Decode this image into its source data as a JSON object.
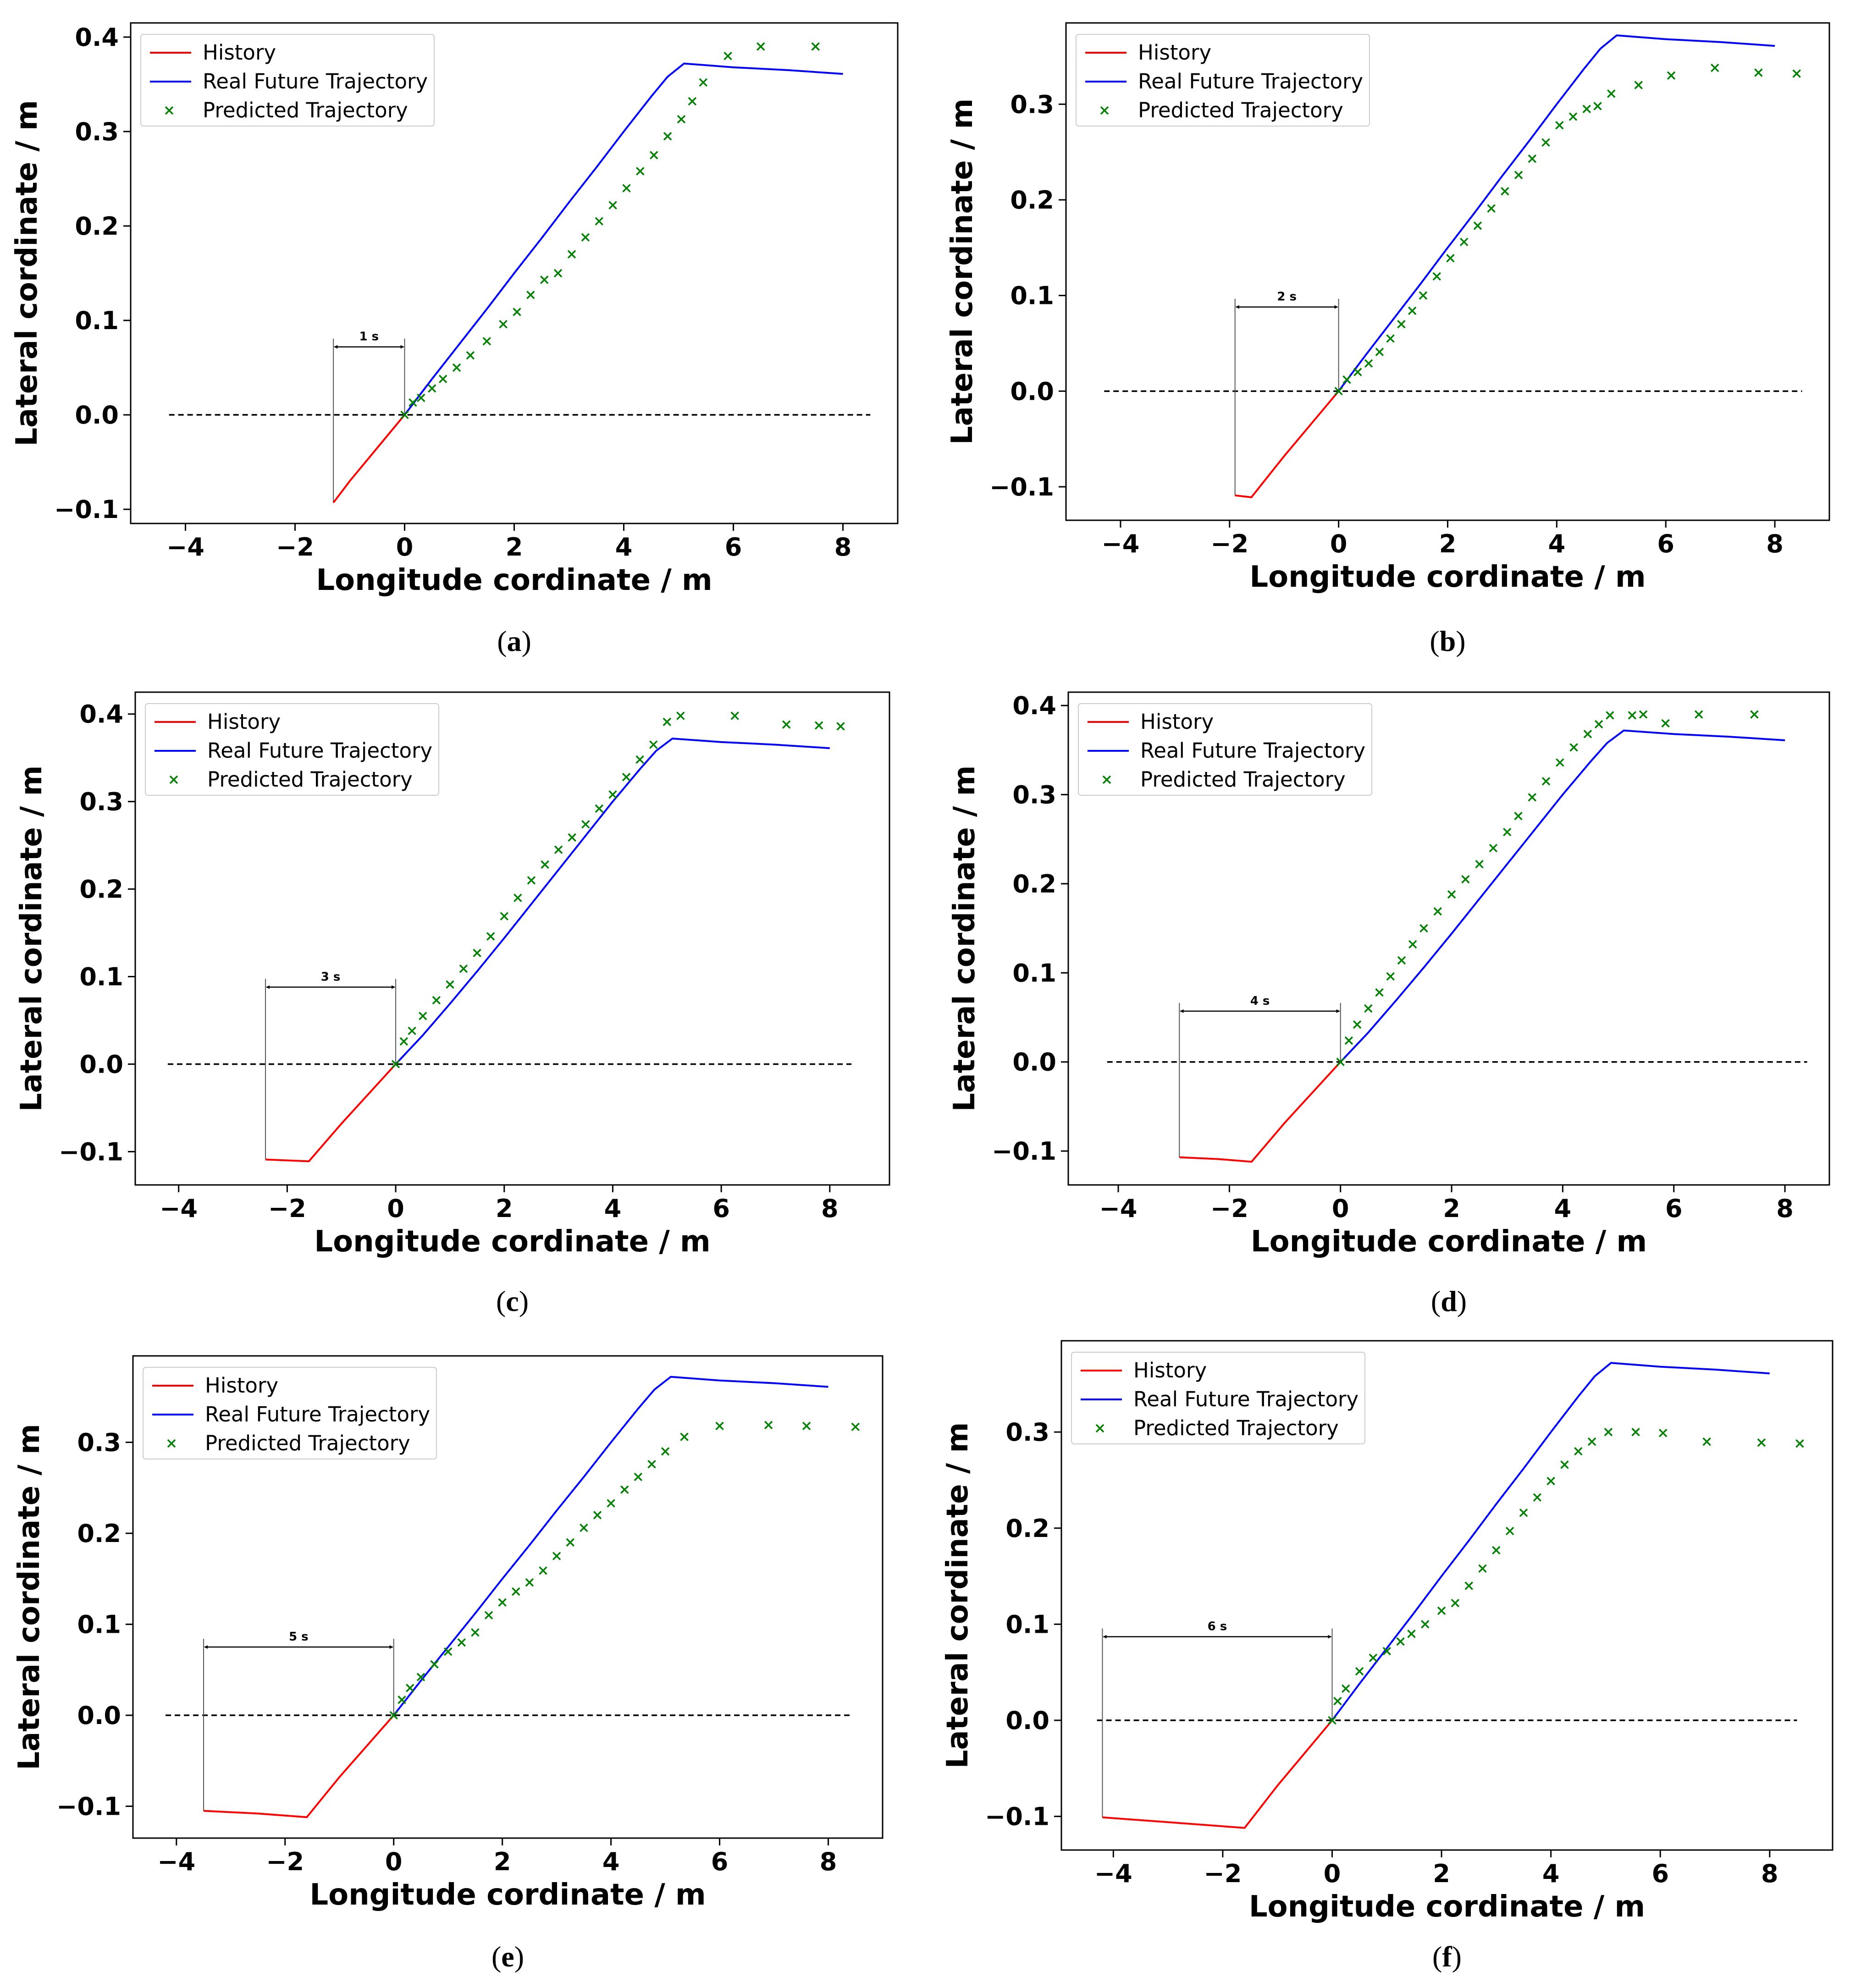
{
  "figure": {
    "colors": {
      "history": "#ff0000",
      "real": "#0000ff",
      "predicted": "#008000",
      "zero_line": "#000000"
    },
    "legend": [
      "History",
      "Real Future Trajectory",
      "Predicted Trajectory"
    ]
  },
  "chart_data": [
    {
      "type": "line",
      "caption": "a",
      "xlabel": "Longitude cordinate / m",
      "ylabel": "Lateral cordinate / m",
      "xlim": [
        -5.0,
        9.0
      ],
      "ylim": [
        -0.115,
        0.415
      ],
      "xticks": [
        -4,
        -2,
        0,
        2,
        4,
        6,
        8
      ],
      "xtick_labels": [
        "−4",
        "−2",
        "0",
        "2",
        "4",
        "6",
        "8"
      ],
      "yticks": [
        -0.1,
        0.0,
        0.1,
        0.2,
        0.3,
        0.4
      ],
      "ytick_labels": [
        "−0.1",
        "0.0",
        "0.1",
        "0.2",
        "0.3",
        "0.4"
      ],
      "zero_line_x": [
        -4.3,
        8.5
      ],
      "interval_label": "1 s",
      "interval_x": [
        -1.3,
        0
      ],
      "interval_y": 0.072,
      "series": [
        {
          "name": "History",
          "x": [
            -1.3,
            -1.0,
            -0.5,
            0.0
          ],
          "y": [
            -0.093,
            -0.07,
            -0.035,
            0.0
          ]
        },
        {
          "name": "Real Future Trajectory",
          "x": [
            0,
            0.5,
            1.0,
            1.5,
            2.0,
            2.5,
            3.0,
            3.5,
            4.0,
            4.5,
            4.8,
            5.1,
            6.0,
            7.0,
            8.0
          ],
          "y": [
            0,
            0.038,
            0.075,
            0.112,
            0.15,
            0.187,
            0.225,
            0.262,
            0.3,
            0.337,
            0.358,
            0.372,
            0.368,
            0.365,
            0.361
          ]
        },
        {
          "name": "Predicted Trajectory",
          "x": [
            0.0,
            0.15,
            0.3,
            0.5,
            0.7,
            0.95,
            1.2,
            1.5,
            1.8,
            2.05,
            2.3,
            2.55,
            2.8,
            3.05,
            3.3,
            3.55,
            3.8,
            4.05,
            4.3,
            4.55,
            4.8,
            5.05,
            5.25,
            5.45,
            5.9,
            6.5,
            7.5
          ],
          "y": [
            0.0,
            0.013,
            0.018,
            0.028,
            0.038,
            0.05,
            0.063,
            0.078,
            0.096,
            0.109,
            0.127,
            0.143,
            0.15,
            0.17,
            0.188,
            0.205,
            0.222,
            0.24,
            0.258,
            0.275,
            0.295,
            0.313,
            0.332,
            0.352,
            0.38,
            0.39,
            0.39
          ]
        }
      ]
    },
    {
      "type": "line",
      "caption": "b",
      "xlabel": "Longitude cordinate / m",
      "ylabel": "Lateral cordinate / m",
      "xlim": [
        -5.0,
        9.0
      ],
      "ylim": [
        -0.135,
        0.385
      ],
      "xticks": [
        -4,
        -2,
        0,
        2,
        4,
        6,
        8
      ],
      "xtick_labels": [
        "−4",
        "−2",
        "0",
        "2",
        "4",
        "6",
        "8"
      ],
      "yticks": [
        -0.1,
        0.0,
        0.1,
        0.2,
        0.3
      ],
      "ytick_labels": [
        "−0.1",
        "0.0",
        "0.1",
        "0.2",
        "0.3"
      ],
      "zero_line_x": [
        -4.3,
        8.5
      ],
      "interval_label": "2 s",
      "interval_x": [
        -1.9,
        0
      ],
      "interval_y": 0.088,
      "series": [
        {
          "name": "History",
          "x": [
            -1.9,
            -1.6,
            -1.0,
            -0.5,
            0.0
          ],
          "y": [
            -0.109,
            -0.111,
            -0.068,
            -0.034,
            0.0
          ]
        },
        {
          "name": "Real Future Trajectory",
          "x": [
            0,
            0.5,
            1.0,
            1.5,
            2.0,
            2.5,
            3.0,
            3.5,
            4.0,
            4.5,
            4.8,
            5.1,
            6.0,
            7.0,
            8.0
          ],
          "y": [
            0,
            0.038,
            0.075,
            0.112,
            0.15,
            0.187,
            0.225,
            0.262,
            0.3,
            0.337,
            0.358,
            0.372,
            0.368,
            0.365,
            0.361
          ]
        },
        {
          "name": "Predicted Trajectory",
          "x": [
            0.0,
            0.15,
            0.35,
            0.55,
            0.75,
            0.95,
            1.15,
            1.35,
            1.55,
            1.8,
            2.05,
            2.3,
            2.55,
            2.8,
            3.05,
            3.3,
            3.55,
            3.8,
            4.05,
            4.3,
            4.55,
            4.75,
            5.0,
            5.5,
            6.1,
            6.9,
            7.7,
            8.4
          ],
          "y": [
            0.0,
            0.012,
            0.02,
            0.029,
            0.041,
            0.055,
            0.07,
            0.084,
            0.1,
            0.12,
            0.139,
            0.156,
            0.173,
            0.191,
            0.209,
            0.226,
            0.243,
            0.26,
            0.278,
            0.287,
            0.295,
            0.298,
            0.311,
            0.32,
            0.33,
            0.338,
            0.333,
            0.332
          ]
        }
      ]
    },
    {
      "type": "line",
      "caption": "c",
      "xlabel": "Longitude cordinate / m",
      "ylabel": "Lateral cordinate / m",
      "xlim": [
        -4.8,
        9.1
      ],
      "ylim": [
        -0.138,
        0.425
      ],
      "xticks": [
        -4,
        -2,
        0,
        2,
        4,
        6,
        8
      ],
      "xtick_labels": [
        "−4",
        "−2",
        "0",
        "2",
        "4",
        "6",
        "8"
      ],
      "yticks": [
        -0.1,
        0.0,
        0.1,
        0.2,
        0.3,
        0.4
      ],
      "ytick_labels": [
        "−0.1",
        "0.0",
        "0.1",
        "0.2",
        "0.3",
        "0.4"
      ],
      "zero_line_x": [
        -4.2,
        8.4
      ],
      "interval_label": "3 s",
      "interval_x": [
        -2.4,
        0
      ],
      "interval_y": 0.088,
      "series": [
        {
          "name": "History",
          "x": [
            -2.4,
            -2.0,
            -1.6,
            -1.0,
            -0.5,
            0.0
          ],
          "y": [
            -0.109,
            -0.11,
            -0.111,
            -0.068,
            -0.034,
            0.0
          ]
        },
        {
          "name": "Real Future Trajectory",
          "x": [
            0,
            0.5,
            1.0,
            1.5,
            2.0,
            2.5,
            3.0,
            3.5,
            4.0,
            4.5,
            4.8,
            5.1,
            6.0,
            7.0,
            8.0
          ],
          "y": [
            0,
            0.033,
            0.069,
            0.106,
            0.144,
            0.183,
            0.222,
            0.261,
            0.3,
            0.337,
            0.358,
            0.372,
            0.368,
            0.365,
            0.361
          ]
        },
        {
          "name": "Predicted Trajectory",
          "x": [
            0.0,
            0.15,
            0.3,
            0.5,
            0.75,
            1.0,
            1.25,
            1.5,
            1.75,
            2.0,
            2.25,
            2.5,
            2.75,
            3.0,
            3.25,
            3.5,
            3.75,
            4.0,
            4.25,
            4.5,
            4.75,
            5.0,
            5.25,
            6.25,
            7.2,
            7.8,
            8.2
          ],
          "y": [
            0.0,
            0.026,
            0.038,
            0.055,
            0.073,
            0.091,
            0.109,
            0.127,
            0.146,
            0.169,
            0.19,
            0.21,
            0.228,
            0.245,
            0.259,
            0.274,
            0.292,
            0.308,
            0.328,
            0.348,
            0.365,
            0.391,
            0.398,
            0.398,
            0.388,
            0.387,
            0.386
          ]
        }
      ]
    },
    {
      "type": "line",
      "caption": "d",
      "xlabel": "Longitude cordinate / m",
      "ylabel": "Lateral cordinate / m",
      "xlim": [
        -4.9,
        8.8
      ],
      "ylim": [
        -0.138,
        0.415
      ],
      "xticks": [
        -4,
        -2,
        0,
        2,
        4,
        6,
        8
      ],
      "xtick_labels": [
        "−4",
        "−2",
        "0",
        "2",
        "4",
        "6",
        "8"
      ],
      "yticks": [
        -0.1,
        0.0,
        0.1,
        0.2,
        0.3,
        0.4
      ],
      "ytick_labels": [
        "−0.1",
        "0.0",
        "0.1",
        "0.2",
        "0.3",
        "0.4"
      ],
      "zero_line_x": [
        -4.2,
        8.4
      ],
      "interval_label": "4 s",
      "interval_x": [
        -2.9,
        0
      ],
      "interval_y": 0.057,
      "series": [
        {
          "name": "History",
          "x": [
            -2.9,
            -2.2,
            -1.6,
            -1.0,
            -0.5,
            0.0
          ],
          "y": [
            -0.107,
            -0.109,
            -0.112,
            -0.068,
            -0.034,
            0.0
          ]
        },
        {
          "name": "Real Future Trajectory",
          "x": [
            0,
            0.5,
            1.0,
            1.5,
            2.0,
            2.5,
            3.0,
            3.5,
            4.0,
            4.5,
            4.8,
            5.1,
            6.0,
            7.0,
            8.0
          ],
          "y": [
            0,
            0.033,
            0.069,
            0.106,
            0.144,
            0.183,
            0.222,
            0.261,
            0.3,
            0.337,
            0.358,
            0.372,
            0.368,
            0.365,
            0.361
          ]
        },
        {
          "name": "Predicted Trajectory",
          "x": [
            0.0,
            0.15,
            0.3,
            0.5,
            0.7,
            0.9,
            1.1,
            1.3,
            1.5,
            1.75,
            2.0,
            2.25,
            2.5,
            2.75,
            3.0,
            3.2,
            3.45,
            3.7,
            3.95,
            4.2,
            4.45,
            4.65,
            4.85,
            5.25,
            5.45,
            5.85,
            6.45,
            7.45
          ],
          "y": [
            0.0,
            0.024,
            0.042,
            0.06,
            0.078,
            0.096,
            0.114,
            0.132,
            0.15,
            0.169,
            0.188,
            0.205,
            0.222,
            0.24,
            0.258,
            0.276,
            0.297,
            0.315,
            0.336,
            0.353,
            0.368,
            0.379,
            0.389,
            0.389,
            0.39,
            0.38,
            0.39,
            0.39
          ]
        }
      ]
    },
    {
      "type": "line",
      "caption": "e",
      "xlabel": "Longitude cordinate / m",
      "ylabel": "Lateral cordinate / m",
      "xlim": [
        -4.8,
        9.0
      ],
      "ylim": [
        -0.135,
        0.395
      ],
      "xticks": [
        -4,
        -2,
        0,
        2,
        4,
        6,
        8
      ],
      "xtick_labels": [
        "−4",
        "−2",
        "0",
        "2",
        "4",
        "6",
        "8"
      ],
      "yticks": [
        -0.1,
        0.0,
        0.1,
        0.2,
        0.3
      ],
      "ytick_labels": [
        "−0.1",
        "0.0",
        "0.1",
        "0.2",
        "0.3"
      ],
      "zero_line_x": [
        -4.2,
        8.4
      ],
      "interval_label": "5 s",
      "interval_x": [
        -3.5,
        0
      ],
      "interval_y": 0.075,
      "series": [
        {
          "name": "History",
          "x": [
            -3.5,
            -2.5,
            -1.6,
            -1.0,
            -0.5,
            0.0
          ],
          "y": [
            -0.105,
            -0.108,
            -0.112,
            -0.068,
            -0.034,
            0.0
          ]
        },
        {
          "name": "Real Future Trajectory",
          "x": [
            0,
            0.5,
            1.0,
            1.5,
            2.0,
            2.5,
            3.0,
            3.5,
            4.0,
            4.5,
            4.8,
            5.1,
            6.0,
            7.0,
            8.0
          ],
          "y": [
            0,
            0.038,
            0.075,
            0.112,
            0.15,
            0.187,
            0.225,
            0.262,
            0.3,
            0.337,
            0.358,
            0.372,
            0.368,
            0.365,
            0.361
          ]
        },
        {
          "name": "Predicted Trajectory",
          "x": [
            0.0,
            0.15,
            0.3,
            0.5,
            0.75,
            1.0,
            1.25,
            1.5,
            1.75,
            2.0,
            2.25,
            2.5,
            2.75,
            3.0,
            3.25,
            3.5,
            3.75,
            4.0,
            4.25,
            4.5,
            4.75,
            5.0,
            5.35,
            6.0,
            6.9,
            7.6,
            8.5
          ],
          "y": [
            0.0,
            0.017,
            0.03,
            0.042,
            0.056,
            0.07,
            0.08,
            0.091,
            0.11,
            0.124,
            0.136,
            0.146,
            0.159,
            0.175,
            0.19,
            0.206,
            0.22,
            0.233,
            0.248,
            0.262,
            0.276,
            0.29,
            0.306,
            0.318,
            0.319,
            0.318,
            0.317
          ]
        }
      ]
    },
    {
      "type": "line",
      "caption": "f",
      "xlabel": "Longitude cordinate / m",
      "ylabel": "Lateral cordinate / m",
      "xlim": [
        -4.95,
        9.15
      ],
      "ylim": [
        -0.135,
        0.395
      ],
      "xticks": [
        -4,
        -2,
        0,
        2,
        4,
        6,
        8
      ],
      "xtick_labels": [
        "−4",
        "−2",
        "0",
        "2",
        "4",
        "6",
        "8"
      ],
      "yticks": [
        -0.1,
        0.0,
        0.1,
        0.2,
        0.3
      ],
      "ytick_labels": [
        "−0.1",
        "0.0",
        "0.1",
        "0.2",
        "0.3"
      ],
      "zero_line_x": [
        -4.3,
        8.5
      ],
      "interval_label": "6 s",
      "interval_x": [
        -4.2,
        0
      ],
      "interval_y": 0.087,
      "series": [
        {
          "name": "History",
          "x": [
            -4.2,
            -3.0,
            -1.6,
            -1.0,
            -0.5,
            0.0
          ],
          "y": [
            -0.101,
            -0.106,
            -0.112,
            -0.068,
            -0.034,
            0.0
          ]
        },
        {
          "name": "Real Future Trajectory",
          "x": [
            0,
            0.5,
            1.0,
            1.5,
            2.0,
            2.5,
            3.0,
            3.5,
            4.0,
            4.5,
            4.8,
            5.1,
            6.0,
            7.0,
            8.0
          ],
          "y": [
            0,
            0.038,
            0.075,
            0.112,
            0.15,
            0.187,
            0.225,
            0.262,
            0.3,
            0.337,
            0.358,
            0.372,
            0.368,
            0.365,
            0.361
          ]
        },
        {
          "name": "Predicted Trajectory",
          "x": [
            0.0,
            0.1,
            0.25,
            0.5,
            0.75,
            1.0,
            1.25,
            1.45,
            1.7,
            2.0,
            2.25,
            2.5,
            2.75,
            3.0,
            3.25,
            3.5,
            3.75,
            4.0,
            4.25,
            4.5,
            4.75,
            5.05,
            5.55,
            6.05,
            6.85,
            7.85,
            8.55
          ],
          "y": [
            0.0,
            0.02,
            0.033,
            0.051,
            0.065,
            0.072,
            0.082,
            0.09,
            0.1,
            0.114,
            0.122,
            0.14,
            0.158,
            0.177,
            0.197,
            0.216,
            0.232,
            0.249,
            0.266,
            0.28,
            0.29,
            0.3,
            0.3,
            0.299,
            0.29,
            0.289,
            0.288
          ]
        }
      ]
    }
  ]
}
